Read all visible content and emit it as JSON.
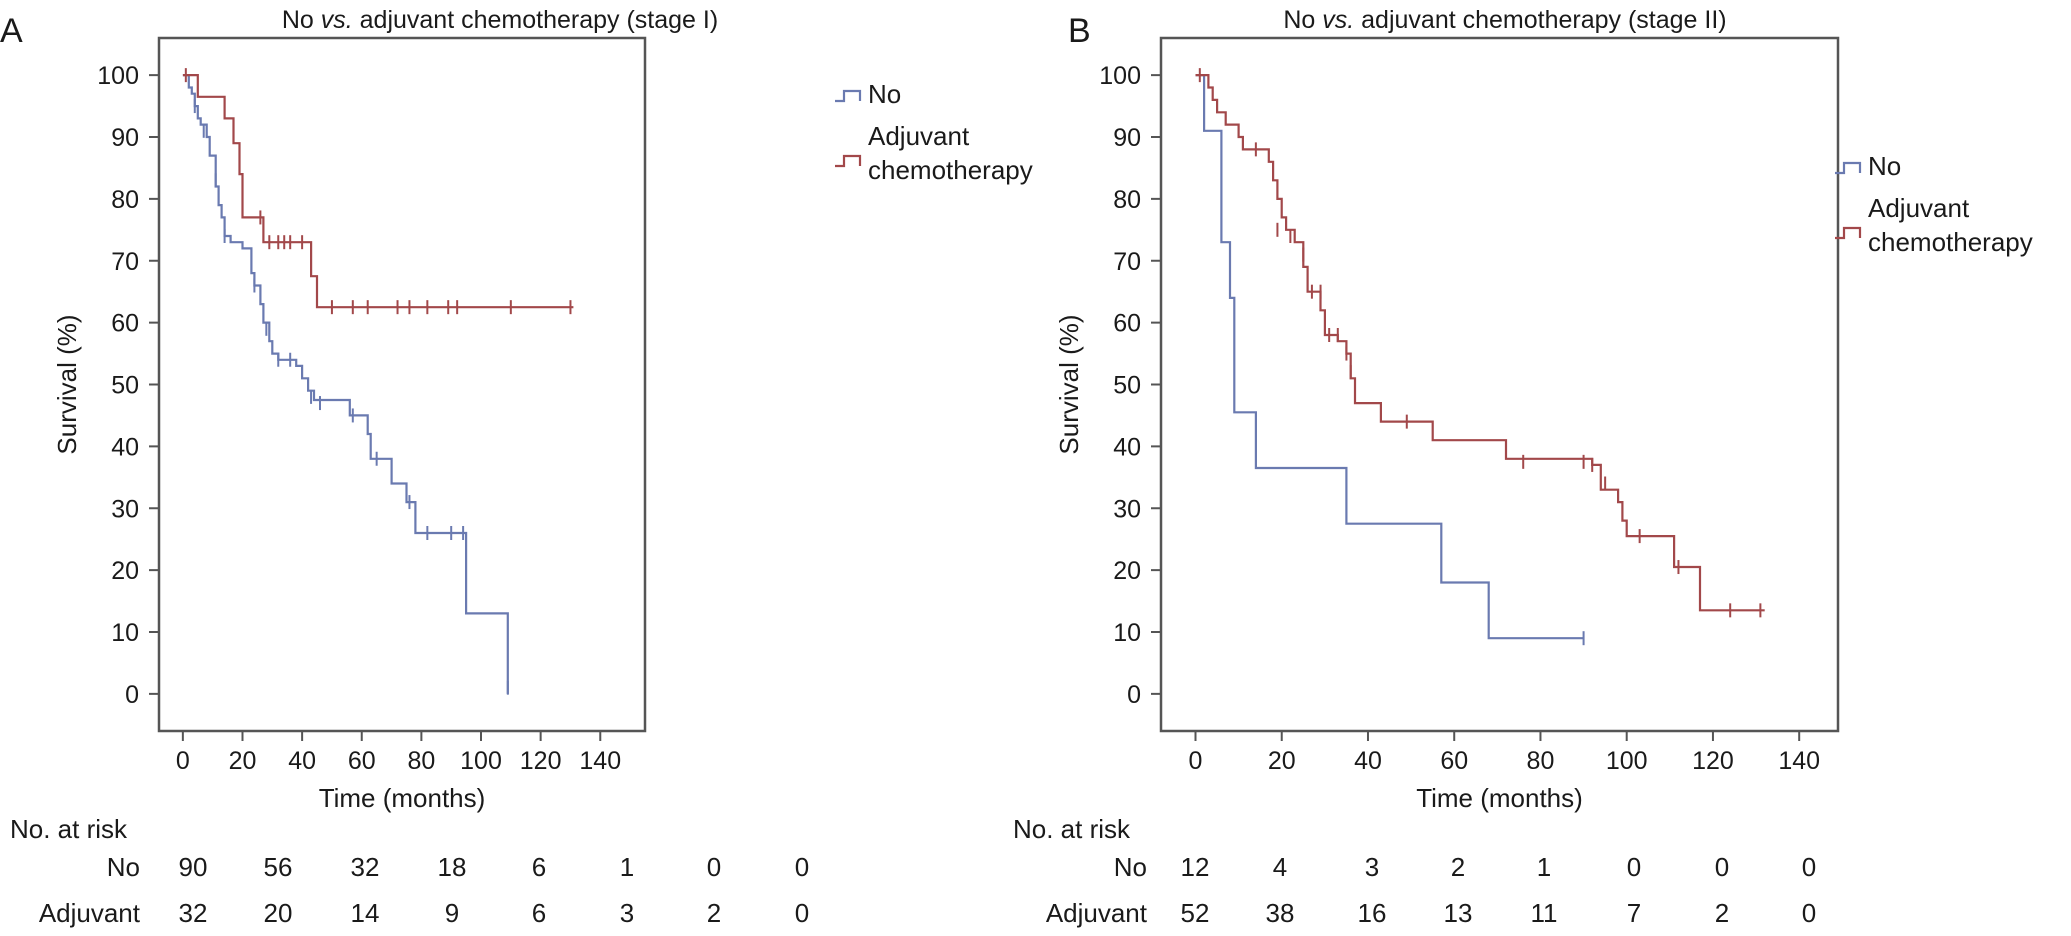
{
  "colors": {
    "no": "#6a7ab0",
    "adjuvant": "#a2484a",
    "frame": "#555555"
  },
  "chart_data": [
    {
      "type": "line",
      "panel_letter": "A",
      "title_prefix": "No ",
      "title_italic": "vs.",
      "title_suffix": " adjuvant chemotherapy (stage I)",
      "xlabel": "Time (months)",
      "ylabel": "Survival (%)",
      "xlim": [
        -8,
        155
      ],
      "ylim": [
        -6,
        106
      ],
      "xticks": [
        0,
        20,
        40,
        60,
        80,
        100,
        120,
        140
      ],
      "yticks": [
        0,
        10,
        20,
        30,
        40,
        50,
        60,
        70,
        80,
        90,
        100
      ],
      "legend": [
        "No",
        "Adjuvant chemotherapy"
      ],
      "legend_lines": [
        [
          "No"
        ],
        [
          "Adjuvant",
          "chemotherapy"
        ]
      ],
      "legend_placement": "right",
      "series": [
        {
          "name": "No",
          "color_key": "no",
          "steps": [
            [
              0,
              100
            ],
            [
              2,
              98
            ],
            [
              3,
              97
            ],
            [
              4,
              95
            ],
            [
              5,
              93
            ],
            [
              6,
              92
            ],
            [
              8,
              90
            ],
            [
              9,
              87
            ],
            [
              11,
              82
            ],
            [
              12,
              79
            ],
            [
              13,
              77
            ],
            [
              14,
              74
            ],
            [
              16,
              73
            ],
            [
              20,
              72
            ],
            [
              23,
              68
            ],
            [
              24,
              66
            ],
            [
              26,
              63
            ],
            [
              27,
              60
            ],
            [
              29,
              57
            ],
            [
              30,
              55
            ],
            [
              32,
              54
            ],
            [
              38,
              53
            ],
            [
              40,
              51
            ],
            [
              42,
              49
            ],
            [
              44,
              47.5
            ],
            [
              55,
              47.5
            ],
            [
              56,
              45
            ],
            [
              62,
              42
            ],
            [
              63,
              38
            ],
            [
              70,
              34
            ],
            [
              75,
              31
            ],
            [
              78,
              26
            ],
            [
              95,
              13
            ],
            [
              109,
              13
            ],
            [
              109,
              0
            ]
          ],
          "censor": [
            [
              4,
              95
            ],
            [
              7,
              91
            ],
            [
              11,
              83
            ],
            [
              14,
              74
            ],
            [
              24,
              66
            ],
            [
              28,
              59
            ],
            [
              32,
              54
            ],
            [
              36,
              54
            ],
            [
              43,
              48
            ],
            [
              46,
              47
            ],
            [
              57,
              45
            ],
            [
              65,
              38
            ],
            [
              76,
              31
            ],
            [
              82,
              26
            ],
            [
              90,
              26
            ],
            [
              94,
              26
            ],
            [
              109,
              1
            ]
          ]
        },
        {
          "name": "Adjuvant chemotherapy",
          "color_key": "adjuvant",
          "steps": [
            [
              0,
              100
            ],
            [
              5,
              96.5
            ],
            [
              14,
              93
            ],
            [
              17,
              89
            ],
            [
              19,
              84
            ],
            [
              20,
              77
            ],
            [
              27,
              73
            ],
            [
              41,
              73
            ],
            [
              43,
              67.5
            ],
            [
              45,
              62.5
            ],
            [
              131,
              62.5
            ]
          ],
          "censor": [
            [
              1,
              100
            ],
            [
              26,
              77
            ],
            [
              29,
              73
            ],
            [
              32,
              73
            ],
            [
              34,
              73
            ],
            [
              36,
              73
            ],
            [
              40,
              73
            ],
            [
              50,
              62.5
            ],
            [
              57,
              62.5
            ],
            [
              62,
              62.5
            ],
            [
              72,
              62.5
            ],
            [
              76,
              62.5
            ],
            [
              82,
              62.5
            ],
            [
              89,
              62.5
            ],
            [
              92,
              62.5
            ],
            [
              110,
              62.5
            ],
            [
              130,
              62.5
            ]
          ]
        }
      ],
      "risk_table": {
        "title": "No. at risk",
        "rows": [
          {
            "label": "No",
            "values": [
              "90",
              "56",
              "32",
              "18",
              "6",
              "1",
              "0",
              "0"
            ]
          },
          {
            "label": "Adjuvant",
            "values": [
              "32",
              "20",
              "14",
              "9",
              "6",
              "3",
              "2",
              "0"
            ]
          }
        ]
      }
    },
    {
      "type": "line",
      "panel_letter": "B",
      "title_prefix": "No ",
      "title_italic": "vs.",
      "title_suffix": " adjuvant chemotherapy (stage II)",
      "xlabel": "Time (months)",
      "ylabel": "Survival (%)",
      "xlim": [
        -8,
        149
      ],
      "ylim": [
        -6,
        106
      ],
      "xticks": [
        0,
        20,
        40,
        60,
        80,
        100,
        120,
        140
      ],
      "yticks": [
        0,
        10,
        20,
        30,
        40,
        50,
        60,
        70,
        80,
        90,
        100
      ],
      "legend": [
        "No",
        "Adjuvant chemotherapy"
      ],
      "legend_lines": [
        [
          "No"
        ],
        [
          "Adjuvant",
          "chemotherapy"
        ]
      ],
      "legend_placement": "right",
      "series": [
        {
          "name": "No",
          "color_key": "no",
          "steps": [
            [
              0,
              100
            ],
            [
              2,
              91
            ],
            [
              6,
              73
            ],
            [
              8,
              64
            ],
            [
              9,
              45.5
            ],
            [
              14,
              36.5
            ],
            [
              35,
              27.5
            ],
            [
              57,
              18
            ],
            [
              68,
              9
            ],
            [
              90,
              9
            ]
          ],
          "censor": [
            [
              90,
              9
            ]
          ]
        },
        {
          "name": "Adjuvant chemotherapy",
          "color_key": "adjuvant",
          "steps": [
            [
              0,
              100
            ],
            [
              3,
              98
            ],
            [
              4,
              96
            ],
            [
              5,
              94
            ],
            [
              7,
              92
            ],
            [
              10,
              90
            ],
            [
              11,
              88
            ],
            [
              17,
              86
            ],
            [
              18,
              83
            ],
            [
              19,
              80
            ],
            [
              20,
              77
            ],
            [
              21,
              75
            ],
            [
              23,
              73
            ],
            [
              25,
              69
            ],
            [
              26,
              65
            ],
            [
              29,
              62
            ],
            [
              30,
              58
            ],
            [
              33,
              57
            ],
            [
              35,
              55
            ],
            [
              36,
              51
            ],
            [
              37,
              47
            ],
            [
              43,
              44
            ],
            [
              54,
              44
            ],
            [
              55,
              41
            ],
            [
              72,
              38
            ],
            [
              92,
              37
            ],
            [
              94,
              33
            ],
            [
              98,
              31
            ],
            [
              99,
              28
            ],
            [
              100,
              25.5
            ],
            [
              111,
              20.5
            ],
            [
              117,
              13.5
            ],
            [
              132,
              13.5
            ]
          ],
          "censor": [
            [
              1,
              100
            ],
            [
              14,
              88
            ],
            [
              19,
              75
            ],
            [
              22,
              74
            ],
            [
              25,
              71
            ],
            [
              27,
              65
            ],
            [
              29,
              65
            ],
            [
              31,
              58
            ],
            [
              33,
              58
            ],
            [
              35,
              55
            ],
            [
              36,
              52
            ],
            [
              49,
              44
            ],
            [
              76,
              37.5
            ],
            [
              90,
              37.5
            ],
            [
              92,
              37
            ],
            [
              95,
              34
            ],
            [
              103,
              25.5
            ],
            [
              112,
              20.5
            ],
            [
              124,
              13.5
            ],
            [
              131,
              13.5
            ]
          ]
        }
      ],
      "risk_table": {
        "title": "No. at risk",
        "rows": [
          {
            "label": "No",
            "values": [
              "12",
              "4",
              "3",
              "2",
              "1",
              "0",
              "0",
              "0"
            ]
          },
          {
            "label": "Adjuvant",
            "values": [
              "52",
              "38",
              "16",
              "13",
              "11",
              "7",
              "2",
              "0"
            ]
          }
        ]
      }
    }
  ]
}
